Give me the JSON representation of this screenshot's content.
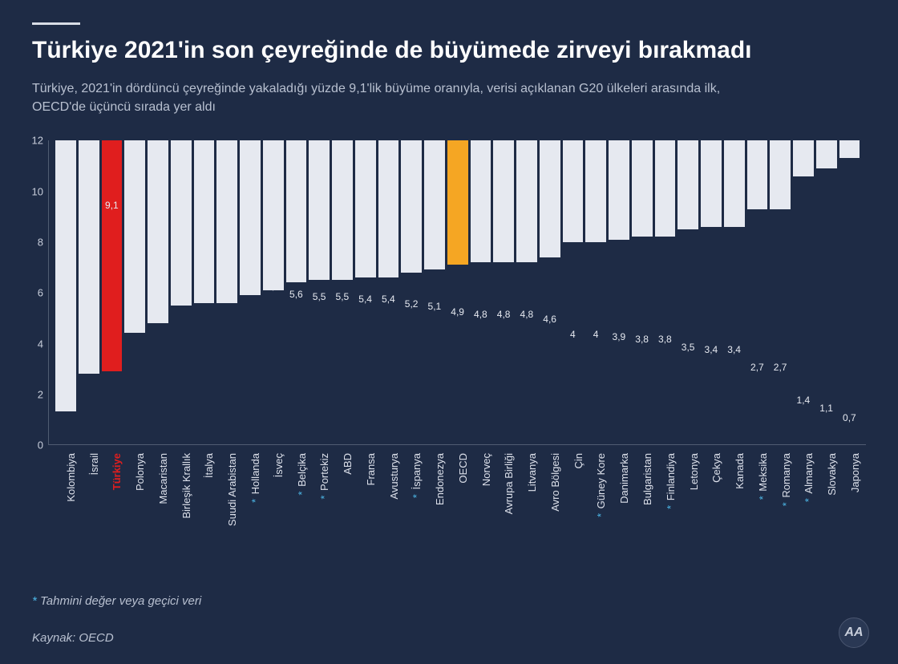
{
  "title": "Türkiye 2021'in son çeyreğinde de büyümede zirveyi bırakmadı",
  "subtitle": "Türkiye, 2021'in dördüncü çeyreğinde yakaladığı yüzde 9,1'lik büyüme oranıyla, verisi açıklanan G20 ülkeleri arasında ilk, OECD'de üçüncü sırada yer aldı",
  "footnote": "Tahmini değer veya geçici veri",
  "source": "Kaynak: OECD",
  "logo": "AA",
  "chart": {
    "type": "bar",
    "ylim": [
      0,
      12
    ],
    "ytick_step": 2,
    "background_color": "#1e2b45",
    "default_bar_color": "#e6e9f0",
    "highlight_colors": {
      "red": "#e01e1e",
      "orange": "#f5a623"
    },
    "asterisk_color": "#4db8e8",
    "value_fontsize": 12,
    "label_fontsize": 13,
    "title_fontsize": 30,
    "subtitle_fontsize": 16,
    "text_color": "#ffffff",
    "muted_text_color": "#b8c0d0",
    "bars": [
      {
        "label": "Kolombiya",
        "value": 10.7,
        "display": "10,7"
      },
      {
        "label": "İsrail",
        "value": 9.2,
        "display": "9,2"
      },
      {
        "label": "Türkiye",
        "value": 9.1,
        "display": "9,1",
        "color": "#e01e1e",
        "label_color": "#e01e1e",
        "label_bold": true
      },
      {
        "label": "Polonya",
        "value": 7.6,
        "display": "7,6"
      },
      {
        "label": "Macaristan",
        "value": 7.2,
        "display": "7,2"
      },
      {
        "label": "Birleşik Krallık",
        "value": 6.5,
        "display": "6,5"
      },
      {
        "label": "İtalya",
        "value": 6.4,
        "display": "6,4"
      },
      {
        "label": "Suudi Arabistan",
        "value": 6.4,
        "display": "6,4"
      },
      {
        "label": "Hollanda",
        "value": 6.1,
        "display": "6,1",
        "asterisk": true
      },
      {
        "label": "İsveç",
        "value": 5.9,
        "display": "5,9"
      },
      {
        "label": "Belçika",
        "value": 5.6,
        "display": "5,6",
        "asterisk": true
      },
      {
        "label": "Portekiz",
        "value": 5.5,
        "display": "5,5",
        "asterisk": true
      },
      {
        "label": "ABD",
        "value": 5.5,
        "display": "5,5"
      },
      {
        "label": "Fransa",
        "value": 5.4,
        "display": "5,4"
      },
      {
        "label": "Avusturya",
        "value": 5.4,
        "display": "5,4"
      },
      {
        "label": "İspanya",
        "value": 5.2,
        "display": "5,2",
        "asterisk": true
      },
      {
        "label": "Endonezya",
        "value": 5.1,
        "display": "5,1"
      },
      {
        "label": "OECD",
        "value": 4.9,
        "display": "4,9",
        "color": "#f5a623"
      },
      {
        "label": "Norveç",
        "value": 4.8,
        "display": "4,8"
      },
      {
        "label": "Avrupa Birliği",
        "value": 4.8,
        "display": "4,8"
      },
      {
        "label": "Litvanya",
        "value": 4.8,
        "display": "4,8"
      },
      {
        "label": "Avro Bölgesi",
        "value": 4.6,
        "display": "4,6"
      },
      {
        "label": "Çin",
        "value": 4.0,
        "display": "4"
      },
      {
        "label": "Güney Kore",
        "value": 4.0,
        "display": "4",
        "asterisk": true
      },
      {
        "label": "Danimarka",
        "value": 3.9,
        "display": "3,9"
      },
      {
        "label": "Bulgaristan",
        "value": 3.8,
        "display": "3,8"
      },
      {
        "label": "Finlandiya",
        "value": 3.8,
        "display": "3,8",
        "asterisk": true
      },
      {
        "label": "Letonya",
        "value": 3.5,
        "display": "3,5"
      },
      {
        "label": "Çekya",
        "value": 3.4,
        "display": "3,4"
      },
      {
        "label": "Kanada",
        "value": 3.4,
        "display": "3,4"
      },
      {
        "label": "Meksika",
        "value": 2.7,
        "display": "2,7",
        "asterisk": true
      },
      {
        "label": "Romanya",
        "value": 2.7,
        "display": "2,7",
        "asterisk": true
      },
      {
        "label": "Almanya",
        "value": 1.4,
        "display": "1,4",
        "asterisk": true
      },
      {
        "label": "Slovakya",
        "value": 1.1,
        "display": "1,1"
      },
      {
        "label": "Japonya",
        "value": 0.7,
        "display": "0,7"
      }
    ]
  }
}
